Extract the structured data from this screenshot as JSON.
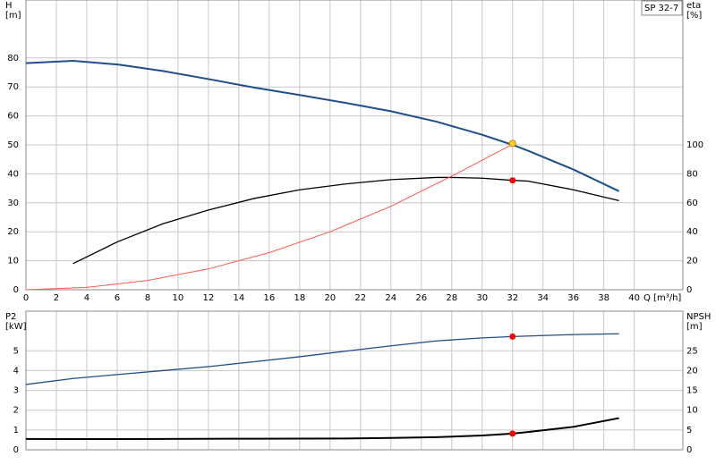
{
  "chart_data": [
    {
      "type": "line",
      "title": "SP 32-7",
      "x_label": "Q [m³/h]",
      "y_label": "H",
      "y_unit": "[m]",
      "y2_label": "eta",
      "y2_unit": "[%]",
      "xlim": [
        0,
        43.2
      ],
      "xticks": [
        0,
        2,
        4,
        6,
        8,
        10,
        12,
        14,
        16,
        18,
        20,
        22,
        24,
        26,
        28,
        30,
        32,
        34,
        36,
        38,
        40
      ],
      "x_tick_labels": true,
      "ylim": [
        0,
        100
      ],
      "yticks": [
        0,
        10,
        20,
        30,
        40,
        50,
        60,
        70,
        80
      ],
      "y2lim": [
        0,
        200
      ],
      "y2ticks": [
        0,
        20,
        40,
        60,
        80,
        100
      ],
      "grid": true,
      "series": [
        {
          "color": "#1f4e8c",
          "width": 2,
          "x": [
            0,
            3.1,
            6.1,
            9,
            12,
            15,
            18,
            21,
            24,
            27,
            30,
            32,
            33,
            36,
            39
          ],
          "values": [
            78.2,
            79,
            77.7,
            75.5,
            72.7,
            69.8,
            67.2,
            64.5,
            61.6,
            58,
            53.5,
            50,
            48,
            41.5,
            34
          ]
        },
        {
          "color": "#000000",
          "width": 1.3,
          "axis": "y2",
          "x": [
            3.1,
            6,
            9,
            12,
            15,
            18,
            21,
            24,
            27,
            28,
            30,
            32,
            33,
            36,
            39
          ],
          "values": [
            18,
            33,
            45.5,
            55,
            63,
            69,
            73,
            76,
            77.5,
            77.5,
            77,
            75.5,
            75,
            69,
            61.5
          ]
        },
        {
          "color": "#ff5a4a",
          "width": 1,
          "x": [
            0,
            4,
            8,
            12,
            16,
            20,
            24,
            28,
            32
          ],
          "values": [
            0,
            0.8,
            3.2,
            7.2,
            12.8,
            20,
            28.8,
            39.2,
            50.2
          ]
        },
        {
          "marker": true,
          "color": "#ffd21f",
          "x": [
            32
          ],
          "values": [
            50.5
          ]
        },
        {
          "marker": true,
          "color": "#ff0000",
          "axis": "y2",
          "x": [
            32
          ],
          "values": [
            75.5
          ]
        }
      ]
    },
    {
      "type": "line",
      "y_label": "P2",
      "y_unit": "[kW]",
      "y2_label": "NPSH",
      "y2_unit": "[m]",
      "xlim": [
        0,
        43.2
      ],
      "xticks": [
        0,
        2,
        4,
        6,
        8,
        10,
        12,
        14,
        16,
        18,
        20,
        22,
        24,
        26,
        28,
        30,
        32,
        34,
        36,
        38,
        40
      ],
      "x_tick_labels": false,
      "ylim": [
        0,
        7
      ],
      "yticks": [
        0,
        1,
        2,
        3,
        4,
        5
      ],
      "y2lim": [
        0,
        35
      ],
      "y2ticks": [
        0,
        5,
        10,
        15,
        20,
        25
      ],
      "grid": true,
      "series": [
        {
          "color": "#1f4e8c",
          "width": 1.3,
          "x": [
            0,
            3.1,
            6,
            9,
            12,
            15,
            18,
            21,
            24,
            27,
            30,
            32,
            36,
            39
          ],
          "values": [
            3.3,
            3.6,
            3.8,
            4.0,
            4.2,
            4.45,
            4.7,
            4.98,
            5.25,
            5.5,
            5.65,
            5.72,
            5.82,
            5.86
          ]
        },
        {
          "color": "#000000",
          "width": 2,
          "axis": "y2",
          "x": [
            0,
            3.1,
            9,
            15,
            21,
            24,
            27,
            30,
            32,
            33,
            36,
            39
          ],
          "values": [
            2.75,
            2.7,
            2.75,
            2.8,
            2.85,
            3.0,
            3.2,
            3.6,
            4.1,
            4.5,
            5.8,
            8
          ]
        },
        {
          "marker": true,
          "color": "#ff0000",
          "x": [
            32
          ],
          "values": [
            5.72
          ]
        },
        {
          "marker": true,
          "color": "#ff0000",
          "axis": "y2",
          "x": [
            32
          ],
          "values": [
            4.1
          ]
        }
      ]
    }
  ]
}
